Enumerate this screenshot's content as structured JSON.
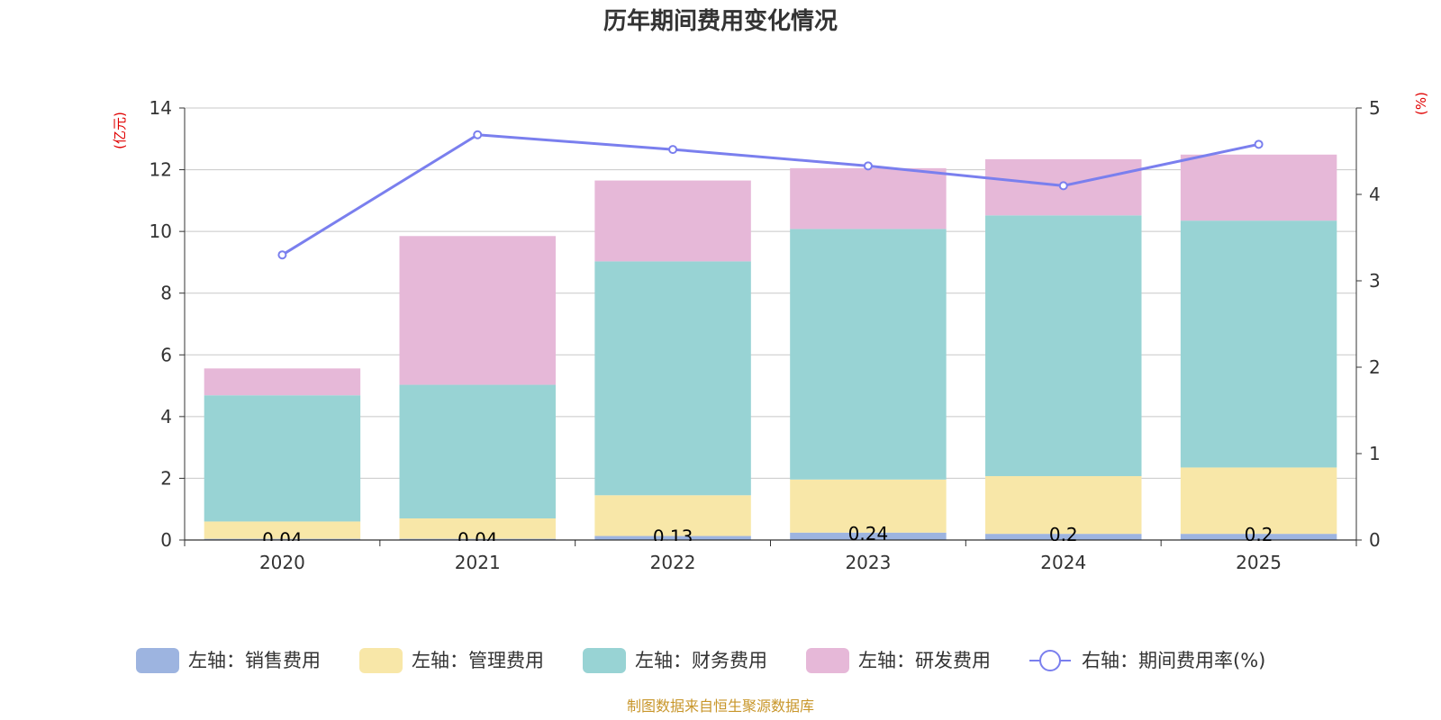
{
  "chart_data": {
    "type": "bar",
    "title": "历年期间费用变化情况",
    "categories": [
      "2020",
      "2021",
      "2022",
      "2023",
      "2024",
      "2025"
    ],
    "left_axis": {
      "unit": "(亿元)",
      "ylim": [
        0,
        14
      ],
      "ticks": [
        "0",
        "2",
        "4",
        "6",
        "8",
        "10",
        "12",
        "14"
      ]
    },
    "right_axis": {
      "unit": "(%)",
      "ylim": [
        0,
        5
      ],
      "ticks": [
        "0",
        "1",
        "2",
        "3",
        "4",
        "5"
      ]
    },
    "series": [
      {
        "name": "左轴：销售费用",
        "axis": "left",
        "kind": "stacked-bar",
        "color": "#9db4e0",
        "values": [
          0.04,
          0.04,
          0.13,
          0.24,
          0.2,
          0.2
        ],
        "labels": [
          "0.04",
          "0.04",
          "0.13",
          "0.24",
          "0.2",
          "0.2"
        ]
      },
      {
        "name": "左轴：管理费用",
        "axis": "left",
        "kind": "stacked-bar",
        "color": "#f8e7a8",
        "values": [
          0.56,
          0.66,
          1.32,
          1.72,
          1.87,
          2.15
        ]
      },
      {
        "name": "左轴：财务费用",
        "axis": "left",
        "kind": "stacked-bar",
        "color": "#98d3d4",
        "values": [
          4.09,
          4.33,
          7.58,
          8.12,
          8.45,
          8.0
        ]
      },
      {
        "name": "左轴：研发费用",
        "axis": "left",
        "kind": "stacked-bar",
        "color": "#e6b8d8",
        "values": [
          0.87,
          4.82,
          2.62,
          1.97,
          1.82,
          2.14
        ]
      },
      {
        "name": "右轴：期间费用率(%)",
        "axis": "right",
        "kind": "line",
        "color": "#7a7fee",
        "values": [
          3.3,
          4.69,
          4.52,
          4.33,
          4.1,
          4.58
        ]
      }
    ],
    "grid": true,
    "legend": "bottom"
  },
  "source": "制图数据来自恒生聚源数据库"
}
